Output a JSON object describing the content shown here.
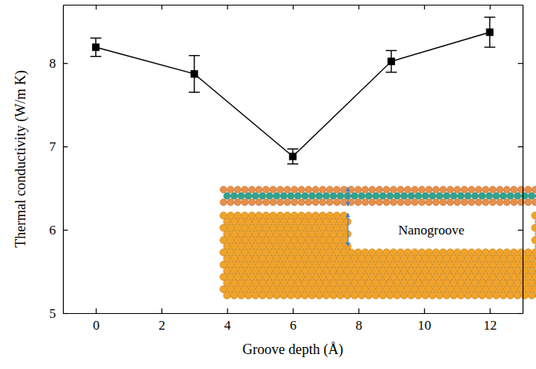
{
  "chart_data": {
    "type": "line",
    "x_label": "Groove depth (Å)",
    "y_label": "Thermal conductivity (W/m K)",
    "annotations": [
      "Nanogroove"
    ],
    "x": [
      0,
      3,
      6,
      9,
      12
    ],
    "values": [
      8.19,
      7.87,
      6.88,
      8.02,
      8.37
    ],
    "errors": [
      0.11,
      0.22,
      0.09,
      0.13,
      0.18
    ],
    "color": "#000000",
    "marker": "square",
    "line_style": "solid",
    "xlim": [
      -1,
      13
    ],
    "xticks": [
      0,
      2,
      4,
      6,
      8,
      10,
      12
    ],
    "ylim": [
      5,
      8.7
    ],
    "yticks": [
      5,
      6,
      7,
      8
    ],
    "grid": false
  }
}
